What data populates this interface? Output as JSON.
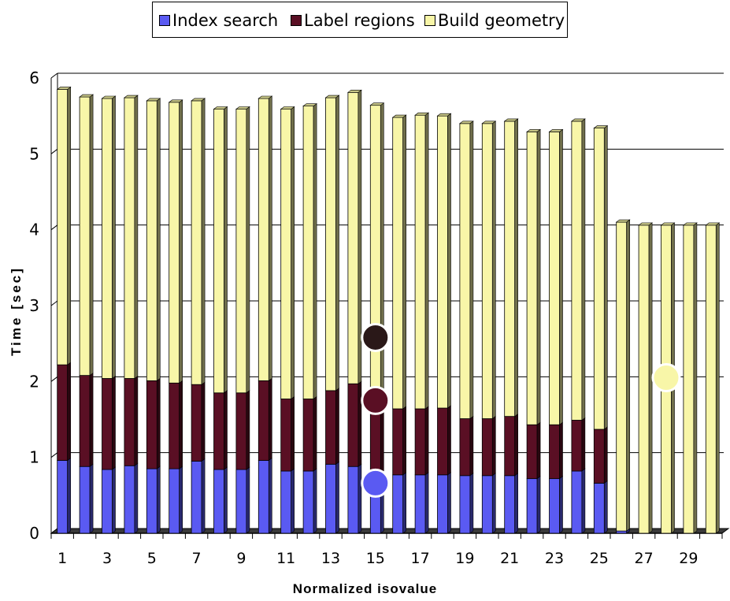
{
  "legend": {
    "items": [
      {
        "label": "Index search",
        "color": "#5a5af2"
      },
      {
        "label": "Label regions",
        "color": "#5a0f24"
      },
      {
        "label": "Build geometry",
        "color": "#f8f6a8"
      }
    ]
  },
  "chart_data": {
    "type": "bar",
    "stacked": true,
    "style": "3d",
    "xlabel": "Normalized isovalue",
    "ylabel": "Time [sec]",
    "ylim": [
      0,
      6
    ],
    "yticks": [
      0,
      1,
      2,
      3,
      4,
      5,
      6
    ],
    "grid": true,
    "legend_position": "top-center",
    "categories": [
      "1",
      "2",
      "3",
      "4",
      "5",
      "6",
      "7",
      "8",
      "9",
      "10",
      "11",
      "12",
      "13",
      "14",
      "15",
      "16",
      "17",
      "18",
      "19",
      "20",
      "21",
      "22",
      "23",
      "24",
      "25",
      "26",
      "27",
      "28",
      "29",
      "30"
    ],
    "xtick_labels": [
      "1",
      "3",
      "5",
      "7",
      "9",
      "11",
      "13",
      "15",
      "17",
      "19",
      "21",
      "23",
      "25",
      "27",
      "29"
    ],
    "series": [
      {
        "name": "Index search",
        "color": "#5a5af2",
        "values": [
          0.96,
          0.88,
          0.84,
          0.89,
          0.85,
          0.85,
          0.95,
          0.84,
          0.84,
          0.96,
          0.82,
          0.82,
          0.91,
          0.88,
          0.75,
          0.77,
          0.77,
          0.77,
          0.76,
          0.76,
          0.76,
          0.72,
          0.72,
          0.82,
          0.66,
          0.03,
          0,
          0,
          0,
          0
        ]
      },
      {
        "name": "Label regions",
        "color": "#5a0f24",
        "values": [
          1.26,
          1.2,
          1.2,
          1.15,
          1.16,
          1.13,
          1.01,
          1.01,
          1.01,
          1.05,
          0.95,
          0.95,
          0.97,
          1.09,
          0.98,
          0.87,
          0.87,
          0.88,
          0.75,
          0.75,
          0.78,
          0.71,
          0.71,
          0.67,
          0.71,
          0,
          0,
          0,
          0,
          0
        ]
      },
      {
        "name": "Build geometry",
        "color": "#f8f6a8",
        "values": [
          3.63,
          3.67,
          3.69,
          3.7,
          3.69,
          3.7,
          3.74,
          3.74,
          3.74,
          3.72,
          3.82,
          3.86,
          3.86,
          3.84,
          3.91,
          3.84,
          3.87,
          3.85,
          3.89,
          3.89,
          3.89,
          3.86,
          3.86,
          3.94,
          3.97,
          4.07,
          4.06,
          4.06,
          4.06,
          4.06
        ]
      }
    ],
    "markers": [
      {
        "x": 15,
        "y": 2.58,
        "color": "#2a1818"
      },
      {
        "x": 15,
        "y": 1.75,
        "color": "#5a0f24"
      },
      {
        "x": 15,
        "y": 0.66,
        "color": "#5a5af2"
      },
      {
        "x": 28,
        "y": 2.05,
        "color": "#f8f6a8"
      }
    ]
  }
}
